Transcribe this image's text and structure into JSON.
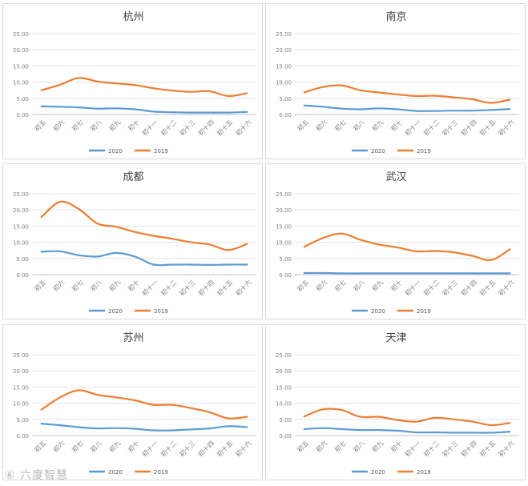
{
  "watermark": "⑥ 六度智慧",
  "chart_data": [
    {
      "type": "line",
      "title": "杭州",
      "categories": [
        "初五",
        "初六",
        "初七",
        "初八",
        "初九",
        "初十",
        "初十一",
        "初十二",
        "初十三",
        "初十四",
        "初十五",
        "初十六"
      ],
      "ylim": [
        0,
        25
      ],
      "yticks": [
        "0.00",
        "5.00",
        "10.00",
        "15.00",
        "20.00",
        "25.00"
      ],
      "grid": true,
      "legend_position": "bottom",
      "series": [
        {
          "name": "2020",
          "color": "#5b9bd5",
          "values": [
            2.5,
            2.4,
            2.2,
            1.8,
            1.9,
            1.6,
            0.9,
            0.7,
            0.6,
            0.6,
            0.6,
            0.8
          ]
        },
        {
          "name": "2019",
          "color": "#ed7d31",
          "values": [
            7.5,
            9.2,
            11.3,
            10.2,
            9.6,
            9.1,
            8.1,
            7.4,
            7.0,
            7.2,
            5.7,
            6.6
          ]
        }
      ]
    },
    {
      "type": "line",
      "title": "南京",
      "categories": [
        "初五",
        "初六",
        "初七",
        "初八",
        "初九",
        "初十",
        "初十一",
        "初十二",
        "初十三",
        "初十四",
        "初十五",
        "初十六"
      ],
      "ylim": [
        0,
        25
      ],
      "yticks": [
        "0.00",
        "5.00",
        "10.00",
        "15.00",
        "20.00",
        "25.00"
      ],
      "grid": true,
      "legend_position": "bottom",
      "series": [
        {
          "name": "2020",
          "color": "#5b9bd5",
          "values": [
            2.8,
            2.4,
            1.8,
            1.6,
            1.9,
            1.6,
            1.1,
            1.1,
            1.2,
            1.2,
            1.4,
            1.7
          ]
        },
        {
          "name": "2019",
          "color": "#ed7d31",
          "values": [
            6.8,
            8.5,
            9.0,
            7.5,
            6.8,
            6.2,
            5.7,
            5.8,
            5.3,
            4.7,
            3.6,
            4.6
          ]
        }
      ]
    },
    {
      "type": "line",
      "title": "成都",
      "categories": [
        "初五",
        "初六",
        "初七",
        "初八",
        "初九",
        "初十",
        "初十一",
        "初十二",
        "初十三",
        "初十四",
        "初十五",
        "初十六"
      ],
      "ylim": [
        0,
        25
      ],
      "yticks": [
        "0.00",
        "5.00",
        "10.00",
        "15.00",
        "20.00",
        "25.00"
      ],
      "grid": true,
      "legend_position": "bottom",
      "series": [
        {
          "name": "2020",
          "color": "#5b9bd5",
          "values": [
            7.1,
            7.2,
            6.0,
            5.6,
            6.7,
            5.6,
            3.1,
            3.1,
            3.1,
            3.0,
            3.1,
            3.1
          ]
        },
        {
          "name": "2019",
          "color": "#ed7d31",
          "values": [
            17.8,
            22.5,
            20.3,
            15.8,
            14.8,
            13.2,
            12.0,
            11.1,
            10.0,
            9.3,
            7.6,
            9.5
          ]
        }
      ]
    },
    {
      "type": "line",
      "title": "武汉",
      "categories": [
        "初五",
        "初六",
        "初七",
        "初八",
        "初九",
        "初十",
        "初十一",
        "初十二",
        "初十三",
        "初十四",
        "初十五",
        "初十六"
      ],
      "ylim": [
        0,
        25
      ],
      "yticks": [
        "0.00",
        "5.00",
        "10.00",
        "15.00",
        "20.00",
        "25.00"
      ],
      "grid": true,
      "legend_position": "bottom",
      "series": [
        {
          "name": "2020",
          "color": "#5b9bd5",
          "values": [
            0.5,
            0.5,
            0.4,
            0.4,
            0.4,
            0.4,
            0.4,
            0.4,
            0.4,
            0.4,
            0.4,
            0.4
          ]
        },
        {
          "name": "2019",
          "color": "#ed7d31",
          "values": [
            8.6,
            11.3,
            12.7,
            10.8,
            9.3,
            8.4,
            7.2,
            7.3,
            6.9,
            5.8,
            4.5,
            7.8
          ]
        }
      ]
    },
    {
      "type": "line",
      "title": "苏州",
      "categories": [
        "初五",
        "初六",
        "初七",
        "初八",
        "初九",
        "初十",
        "初十一",
        "初十二",
        "初十三",
        "初十四",
        "初十五",
        "初十六"
      ],
      "ylim": [
        0,
        25
      ],
      "yticks": [
        "0.00",
        "5.00",
        "10.00",
        "15.00",
        "20.00",
        "25.00"
      ],
      "grid": true,
      "legend_position": "bottom",
      "series": [
        {
          "name": "2020",
          "color": "#5b9bd5",
          "values": [
            3.7,
            3.2,
            2.6,
            2.2,
            2.3,
            2.1,
            1.6,
            1.6,
            1.9,
            2.2,
            2.9,
            2.6
          ]
        },
        {
          "name": "2019",
          "color": "#ed7d31",
          "values": [
            8.0,
            11.8,
            14.0,
            12.6,
            11.8,
            10.9,
            9.5,
            9.5,
            8.5,
            7.2,
            5.3,
            5.8
          ]
        }
      ]
    },
    {
      "type": "line",
      "title": "天津",
      "categories": [
        "初五",
        "初六",
        "初七",
        "初八",
        "初九",
        "初十",
        "初十一",
        "初十二",
        "初十三",
        "初十四",
        "初十五",
        "初十六"
      ],
      "ylim": [
        0,
        25
      ],
      "yticks": [
        "0.00",
        "5.00",
        "10.00",
        "15.00",
        "20.00",
        "25.00"
      ],
      "grid": true,
      "legend_position": "bottom",
      "series": [
        {
          "name": "2020",
          "color": "#5b9bd5",
          "values": [
            2.0,
            2.3,
            2.0,
            1.7,
            1.7,
            1.5,
            1.0,
            1.0,
            0.9,
            0.9,
            0.9,
            1.2
          ]
        },
        {
          "name": "2019",
          "color": "#ed7d31",
          "values": [
            5.9,
            8.1,
            7.9,
            5.8,
            5.8,
            4.8,
            4.3,
            5.5,
            5.0,
            4.3,
            3.2,
            3.9
          ]
        }
      ]
    }
  ]
}
